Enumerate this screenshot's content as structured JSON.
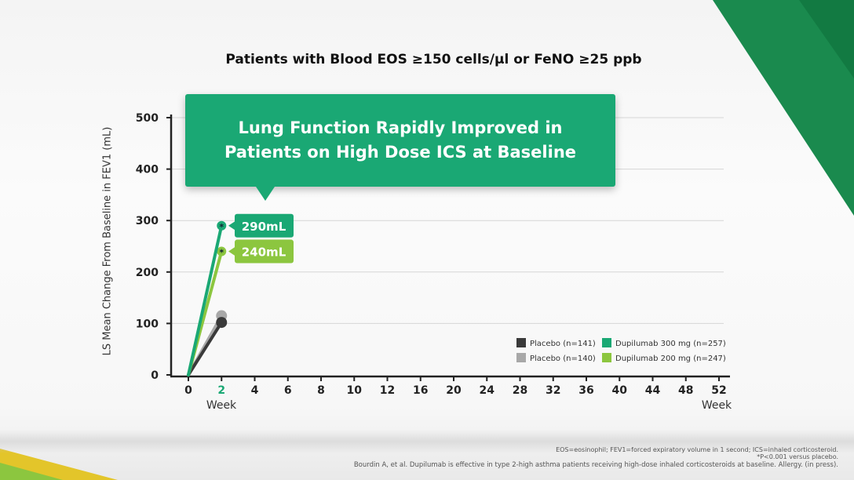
{
  "title": "Patients with Blood EOS ≥150 cells/µl or FeNO ≥25 ppb",
  "callout": {
    "line1": "Lung Function Rapidly Improved in",
    "line2": "Patients on High Dose ICS at Baseline"
  },
  "colors": {
    "accent": "#1aa874",
    "dupi300": "#1aa874",
    "dupi200": "#8cc63f",
    "placebo141": "#3a3a3a",
    "placebo140": "#a8a8a8"
  },
  "chart_data": {
    "type": "line",
    "ylabel": "LS Mean Change From Baseline in FEV1 (mL)",
    "xlabel_left": "Week",
    "xlabel_right": "Week",
    "x_ticks": [
      "0",
      "2",
      "4",
      "6",
      "8",
      "10",
      "12",
      "16",
      "20",
      "24",
      "28",
      "32",
      "36",
      "40",
      "44",
      "48",
      "52"
    ],
    "y_ticks": [
      "0",
      "100",
      "200",
      "300",
      "400",
      "500"
    ],
    "ylim": [
      0,
      500
    ],
    "grid": true,
    "legend_placement": "bottom-right",
    "series": [
      {
        "name": "Placebo (n=141)",
        "color": "#3a3a3a",
        "x": [
          0,
          2
        ],
        "y": [
          0,
          102
        ]
      },
      {
        "name": "Placebo (n=140)",
        "color": "#a8a8a8",
        "x": [
          0,
          2
        ],
        "y": [
          0,
          115
        ]
      },
      {
        "name": "Dupilumab 300 mg (n=257)",
        "color": "#1aa874",
        "x": [
          0,
          2
        ],
        "y": [
          0,
          290
        ],
        "label": "290mL",
        "significant": true
      },
      {
        "name": "Dupilumab 200 mg (n=247)",
        "color": "#8cc63f",
        "x": [
          0,
          2
        ],
        "y": [
          0,
          240
        ],
        "label": "240mL",
        "significant": true
      }
    ]
  },
  "footnotes": {
    "line1": "EOS=eosinophil; FEV1=forced expiratory volume in 1 second; ICS=inhaled corticosteroid.",
    "line2": "*P<0.001 versus placebo.",
    "line3": "Bourdin A, et al. Dupilumab is effective in type 2-high asthma patients receiving high-dose inhaled corticosteroids at baseline. Allergy. (in press)."
  }
}
